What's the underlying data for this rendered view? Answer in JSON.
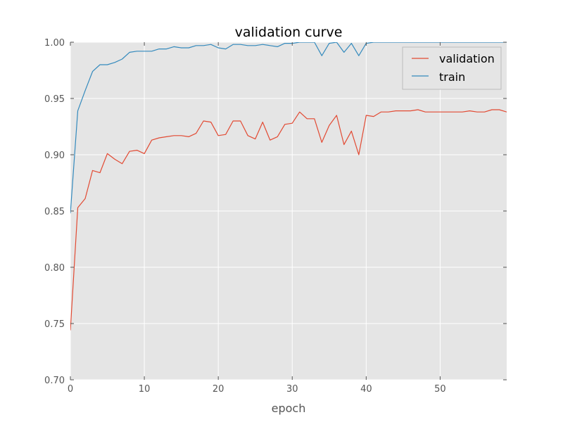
{
  "chart_data": {
    "type": "line",
    "title": "validation curve",
    "xlabel": "epoch",
    "ylabel": "",
    "xlim": [
      0,
      59
    ],
    "ylim": [
      0.7,
      1.0
    ],
    "x_ticks": [
      0,
      10,
      20,
      30,
      40,
      50
    ],
    "y_ticks": [
      0.7,
      0.75,
      0.8,
      0.85,
      0.9,
      0.95,
      1.0
    ],
    "y_tick_labels": [
      "0.70",
      "0.75",
      "0.80",
      "0.85",
      "0.90",
      "0.95",
      "1.00"
    ],
    "grid": true,
    "background": "#e5e5e5",
    "legend_position": "top-right",
    "x": [
      0,
      1,
      2,
      3,
      4,
      5,
      6,
      7,
      8,
      9,
      10,
      11,
      12,
      13,
      14,
      15,
      16,
      17,
      18,
      19,
      20,
      21,
      22,
      23,
      24,
      25,
      26,
      27,
      28,
      29,
      30,
      31,
      32,
      33,
      34,
      35,
      36,
      37,
      38,
      39,
      40,
      41,
      42,
      43,
      44,
      45,
      46,
      47,
      48,
      49,
      50,
      51,
      52,
      53,
      54,
      55,
      56,
      57,
      58,
      59
    ],
    "series": [
      {
        "name": "validation",
        "color": "#e24a33",
        "values": [
          0.744,
          0.853,
          0.861,
          0.886,
          0.884,
          0.901,
          0.896,
          0.892,
          0.903,
          0.904,
          0.901,
          0.913,
          0.915,
          0.916,
          0.917,
          0.917,
          0.916,
          0.919,
          0.93,
          0.929,
          0.917,
          0.918,
          0.93,
          0.93,
          0.917,
          0.914,
          0.929,
          0.913,
          0.916,
          0.927,
          0.928,
          0.938,
          0.932,
          0.932,
          0.911,
          0.926,
          0.935,
          0.909,
          0.921,
          0.9,
          0.935,
          0.934,
          0.938,
          0.938,
          0.939,
          0.939,
          0.939,
          0.94,
          0.938,
          0.938,
          0.938,
          0.938,
          0.938,
          0.938,
          0.939,
          0.938,
          0.938,
          0.94,
          0.94,
          0.938
        ]
      },
      {
        "name": "train",
        "color": "#348abd",
        "values": [
          0.848,
          0.939,
          0.957,
          0.974,
          0.98,
          0.98,
          0.982,
          0.985,
          0.991,
          0.992,
          0.992,
          0.992,
          0.994,
          0.994,
          0.996,
          0.995,
          0.995,
          0.997,
          0.997,
          0.998,
          0.995,
          0.994,
          0.998,
          0.998,
          0.997,
          0.997,
          0.998,
          0.997,
          0.996,
          0.999,
          0.999,
          1.0,
          1.0,
          1.0,
          0.988,
          0.999,
          1.0,
          0.991,
          0.999,
          0.988,
          0.999,
          1.0,
          1.0,
          1.0,
          1.0,
          1.0,
          1.0,
          1.0,
          1.0,
          1.0,
          1.0,
          1.0,
          1.0,
          1.0,
          1.0,
          1.0,
          1.0,
          1.0,
          1.0,
          1.0
        ]
      }
    ]
  }
}
